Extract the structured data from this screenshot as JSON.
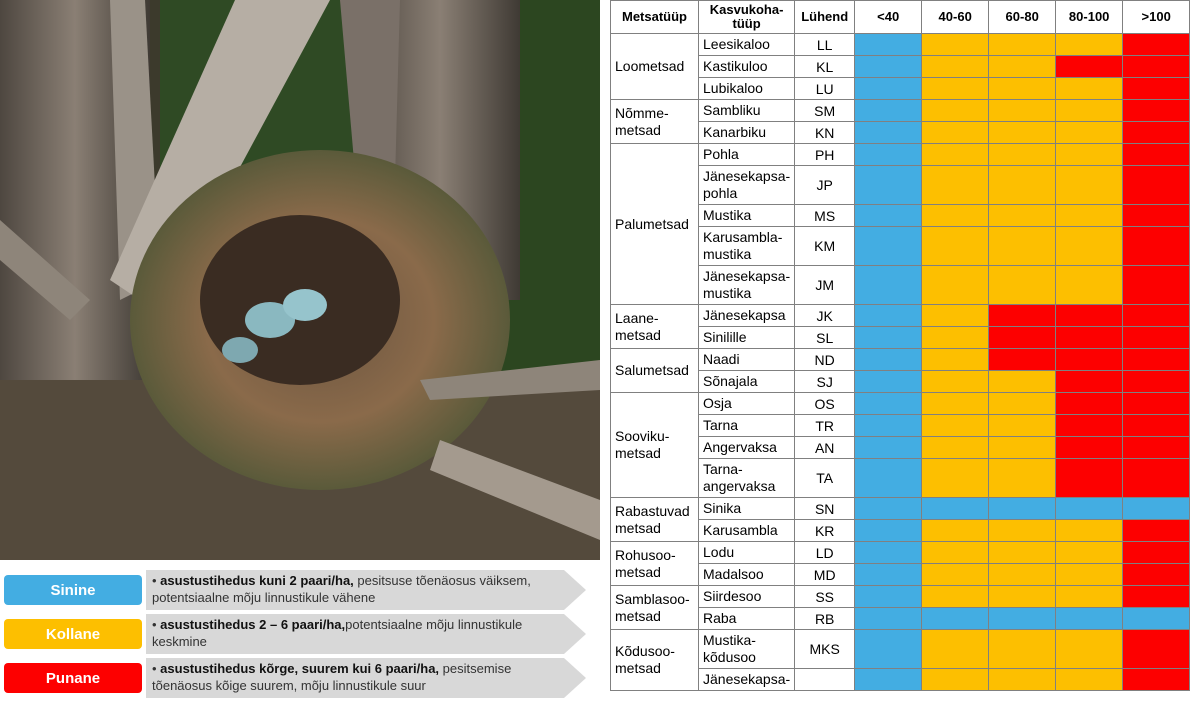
{
  "colors": {
    "blue": "#43ade2",
    "yellow": "#fdbf00",
    "red": "#fd0000"
  },
  "photo": {
    "subject": "bird-nest-with-eggs-icon"
  },
  "legend": [
    {
      "name": "Sinine",
      "color": "#43ade2",
      "bold": "asustustihedus kuni 2 paari/ha,",
      "rest": " pesitsuse tõenäosus väiksem, potentsiaalne mõju linnustikule vähene"
    },
    {
      "name": "Kollane",
      "color": "#fdbf00",
      "bold": "asustustihedus 2 – 6 paari/ha,",
      "rest": "potentsiaalne mõju linnustikule keskmine"
    },
    {
      "name": "Punane",
      "color": "#fd0000",
      "bold": "asustustihedus kõrge, suurem kui 6 paari/ha,",
      "rest": " pesitsemise tõenäosus kõige suurem, mõju linnustikule suur"
    }
  ],
  "table": {
    "headers": [
      "Metsatüüp",
      "Kasvukoha-tüüp",
      "Lühend",
      "<40",
      "40-60",
      "60-80",
      "80-100",
      ">100"
    ],
    "groups": [
      {
        "name": "Loometsad",
        "rows": [
          {
            "site": "Leesikaloo",
            "abbr": "LL",
            "c": [
              "blue",
              "yellow",
              "yellow",
              "yellow",
              "red"
            ]
          },
          {
            "site": "Kastikuloo",
            "abbr": "KL",
            "c": [
              "blue",
              "yellow",
              "yellow",
              "red",
              "red"
            ]
          },
          {
            "site": "Lubikaloo",
            "abbr": "LU",
            "c": [
              "blue",
              "yellow",
              "yellow",
              "yellow",
              "red"
            ]
          }
        ]
      },
      {
        "name": "Nõmme-metsad",
        "rows": [
          {
            "site": "Sambliku",
            "abbr": "SM",
            "c": [
              "blue",
              "yellow",
              "yellow",
              "yellow",
              "red"
            ]
          },
          {
            "site": "Kanarbiku",
            "abbr": "KN",
            "c": [
              "blue",
              "yellow",
              "yellow",
              "yellow",
              "red"
            ]
          }
        ]
      },
      {
        "name": "Palumetsad",
        "rows": [
          {
            "site": "Pohla",
            "abbr": "PH",
            "c": [
              "blue",
              "yellow",
              "yellow",
              "yellow",
              "red"
            ]
          },
          {
            "site": "Jänesekapsa-pohla",
            "abbr": "JP",
            "tall": true,
            "c": [
              "blue",
              "yellow",
              "yellow",
              "yellow",
              "red"
            ]
          },
          {
            "site": "Mustika",
            "abbr": "MS",
            "c": [
              "blue",
              "yellow",
              "yellow",
              "yellow",
              "red"
            ]
          },
          {
            "site": "Karusambla-mustika",
            "abbr": "KM",
            "tall": true,
            "c": [
              "blue",
              "yellow",
              "yellow",
              "yellow",
              "red"
            ]
          },
          {
            "site": "Jänesekapsa-mustika",
            "abbr": "JM",
            "tall": true,
            "c": [
              "blue",
              "yellow",
              "yellow",
              "yellow",
              "red"
            ]
          }
        ]
      },
      {
        "name": "Laane-metsad",
        "rows": [
          {
            "site": "Jänesekapsa",
            "abbr": "JK",
            "c": [
              "blue",
              "yellow",
              "red",
              "red",
              "red"
            ]
          },
          {
            "site": "Sinilille",
            "abbr": "SL",
            "c": [
              "blue",
              "yellow",
              "red",
              "red",
              "red"
            ]
          }
        ]
      },
      {
        "name": "Salumetsad",
        "rows": [
          {
            "site": "Naadi",
            "abbr": "ND",
            "c": [
              "blue",
              "yellow",
              "red",
              "red",
              "red"
            ]
          },
          {
            "site": "Sõnajala",
            "abbr": "SJ",
            "c": [
              "blue",
              "yellow",
              "yellow",
              "red",
              "red"
            ]
          }
        ]
      },
      {
        "name": "Sooviku-metsad",
        "rows": [
          {
            "site": "Osja",
            "abbr": "OS",
            "c": [
              "blue",
              "yellow",
              "yellow",
              "red",
              "red"
            ]
          },
          {
            "site": "Tarna",
            "abbr": "TR",
            "c": [
              "blue",
              "yellow",
              "yellow",
              "red",
              "red"
            ]
          },
          {
            "site": "Angervaksa",
            "abbr": "AN",
            "c": [
              "blue",
              "yellow",
              "yellow",
              "red",
              "red"
            ]
          },
          {
            "site": "Tarna-angervaksa",
            "abbr": "TA",
            "tall": true,
            "c": [
              "blue",
              "yellow",
              "yellow",
              "red",
              "red"
            ]
          }
        ]
      },
      {
        "name": "Rabastuvad metsad",
        "rows": [
          {
            "site": "Sinika",
            "abbr": "SN",
            "c": [
              "blue",
              "blue",
              "blue",
              "blue",
              "blue"
            ]
          },
          {
            "site": "Karusambla",
            "abbr": "KR",
            "c": [
              "blue",
              "yellow",
              "yellow",
              "yellow",
              "red"
            ]
          }
        ]
      },
      {
        "name": "Rohusoo-metsad",
        "rows": [
          {
            "site": "Lodu",
            "abbr": "LD",
            "c": [
              "blue",
              "yellow",
              "yellow",
              "yellow",
              "red"
            ]
          },
          {
            "site": "Madalsoo",
            "abbr": "MD",
            "c": [
              "blue",
              "yellow",
              "yellow",
              "yellow",
              "red"
            ]
          }
        ]
      },
      {
        "name": "Samblasoo-metsad",
        "rows": [
          {
            "site": "Siirdesoo",
            "abbr": "SS",
            "c": [
              "blue",
              "yellow",
              "yellow",
              "yellow",
              "red"
            ]
          },
          {
            "site": "Raba",
            "abbr": "RB",
            "c": [
              "blue",
              "blue",
              "blue",
              "blue",
              "blue"
            ]
          }
        ]
      },
      {
        "name": "Kõdusoo-metsad",
        "rows": [
          {
            "site": "Mustika-kõdusoo",
            "abbr": "MKS",
            "tall": true,
            "c": [
              "blue",
              "yellow",
              "yellow",
              "yellow",
              "red"
            ]
          },
          {
            "site": "Jänesekapsa-",
            "abbr": "",
            "c": [
              "blue",
              "yellow",
              "yellow",
              "yellow",
              "red"
            ]
          }
        ]
      }
    ]
  }
}
